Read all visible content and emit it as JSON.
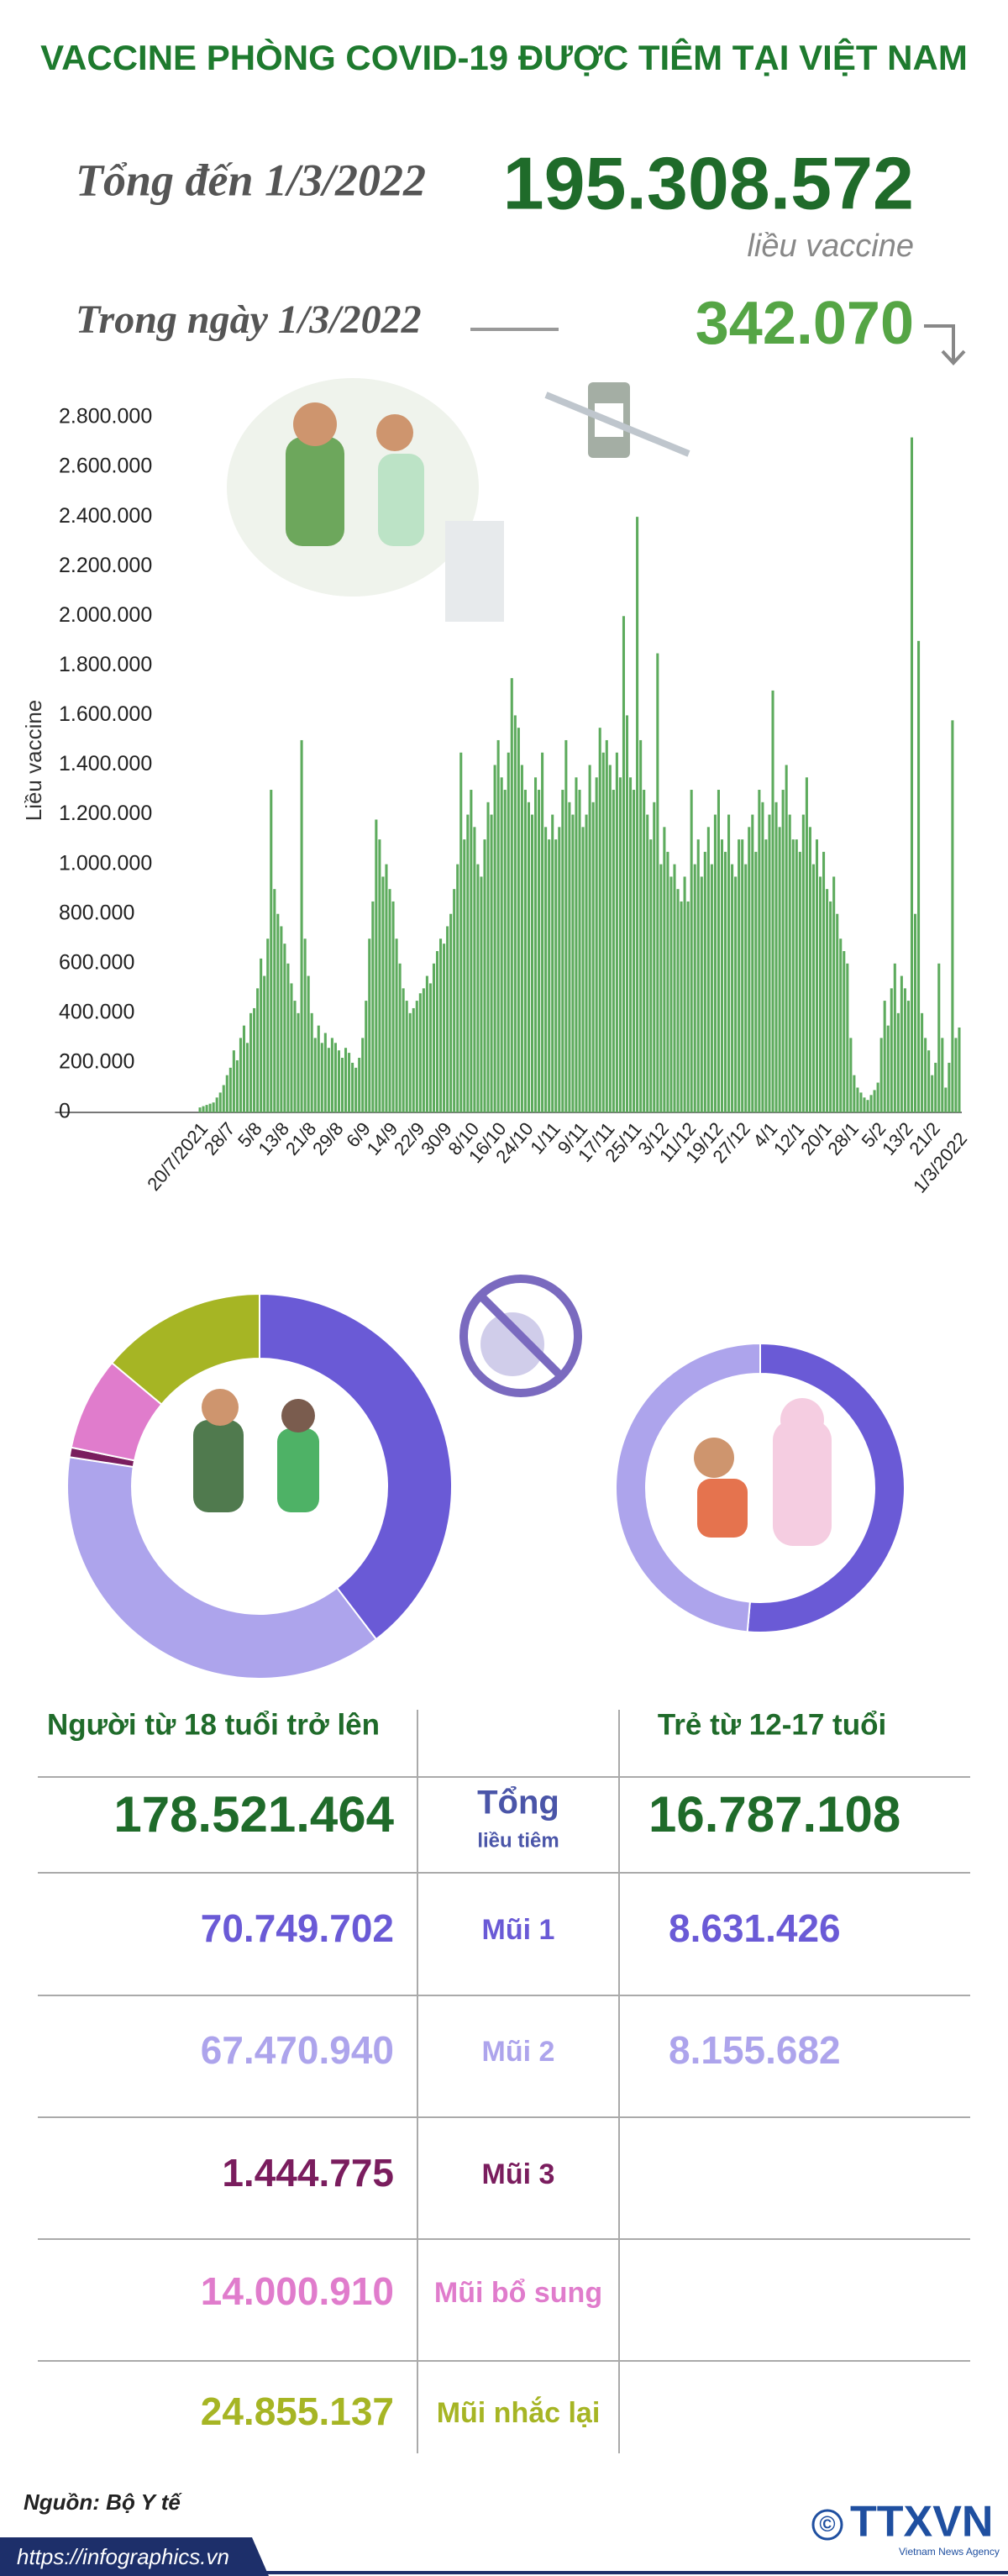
{
  "header": {
    "title": "VACCINE PHÒNG COVID-19 ĐƯỢC TIÊM TẠI VIỆT NAM",
    "total_label": "Tổng đến 1/3/2022",
    "total_value": "195.308.572",
    "total_unit": "liều vaccine",
    "daily_label": "Trong ngày 1/3/2022",
    "daily_value": "342.070"
  },
  "chart_data": {
    "type": "bar",
    "ylabel": "Liều vaccine",
    "color": "#5dab5d",
    "ylim": [
      0,
      2800000
    ],
    "yticks": [
      0,
      {
        "value": 200000,
        "label": "200.000"
      },
      {
        "value": 400000,
        "label": "400.000"
      },
      {
        "value": 600000,
        "label": "600.000"
      },
      {
        "value": 800000,
        "label": "800.000"
      },
      {
        "value": 1000000,
        "label": "1.000.000"
      },
      {
        "value": 1200000,
        "label": "1.200.000"
      },
      {
        "value": 1400000,
        "label": "1.400.000"
      },
      {
        "value": 1600000,
        "label": "1.600.000"
      },
      {
        "value": 1800000,
        "label": "1.800.000"
      },
      {
        "value": 2000000,
        "label": "2.000.000"
      },
      {
        "value": 2200000,
        "label": "2.200.000"
      },
      {
        "value": 2400000,
        "label": "2.400.000"
      },
      {
        "value": 2600000,
        "label": "2.600.000"
      },
      {
        "value": 2800000,
        "label": "2.800.000"
      }
    ],
    "categories": [
      "20/7/2021",
      null,
      null,
      null,
      null,
      null,
      null,
      null,
      "28/7",
      null,
      null,
      null,
      null,
      null,
      null,
      null,
      "5/8",
      null,
      null,
      null,
      null,
      null,
      null,
      null,
      "13/8",
      null,
      null,
      null,
      null,
      null,
      null,
      null,
      "21/8",
      null,
      null,
      null,
      null,
      null,
      null,
      null,
      "29/8",
      null,
      null,
      null,
      null,
      null,
      null,
      null,
      "6/9",
      null,
      null,
      null,
      null,
      null,
      null,
      null,
      "14/9",
      null,
      null,
      null,
      null,
      null,
      null,
      null,
      "22/9",
      null,
      null,
      null,
      null,
      null,
      null,
      null,
      "30/9",
      null,
      null,
      null,
      null,
      null,
      null,
      null,
      "8/10",
      null,
      null,
      null,
      null,
      null,
      null,
      null,
      "16/10",
      null,
      null,
      null,
      null,
      null,
      null,
      null,
      "24/10",
      null,
      null,
      null,
      null,
      null,
      null,
      null,
      "1/11",
      null,
      null,
      null,
      null,
      null,
      null,
      null,
      "9/11",
      null,
      null,
      null,
      null,
      null,
      null,
      null,
      "17/11",
      null,
      null,
      null,
      null,
      null,
      null,
      null,
      "25/11",
      null,
      null,
      null,
      null,
      null,
      null,
      null,
      "3/12",
      null,
      null,
      null,
      null,
      null,
      null,
      null,
      "11/12",
      null,
      null,
      null,
      null,
      null,
      null,
      null,
      "19/12",
      null,
      null,
      null,
      null,
      null,
      null,
      null,
      "27/12",
      null,
      null,
      null,
      null,
      null,
      null,
      null,
      "4/1",
      null,
      null,
      null,
      null,
      null,
      null,
      null,
      "12/1",
      null,
      null,
      null,
      null,
      null,
      null,
      null,
      "20/1",
      null,
      null,
      null,
      null,
      null,
      null,
      null,
      "28/1",
      null,
      null,
      null,
      null,
      null,
      null,
      null,
      "5/2",
      null,
      null,
      null,
      null,
      null,
      null,
      null,
      "13/2",
      null,
      null,
      null,
      null,
      null,
      null,
      null,
      "21/2",
      null,
      null,
      null,
      null,
      null,
      null,
      null,
      "1/3/2022"
    ],
    "values": [
      20000,
      25000,
      30000,
      35000,
      40000,
      60000,
      80000,
      110000,
      150000,
      180000,
      250000,
      210000,
      300000,
      350000,
      280000,
      400000,
      420000,
      500000,
      620000,
      550000,
      700000,
      1300000,
      900000,
      800000,
      750000,
      680000,
      600000,
      520000,
      450000,
      400000,
      1500000,
      700000,
      550000,
      400000,
      300000,
      350000,
      280000,
      320000,
      260000,
      300000,
      280000,
      250000,
      220000,
      260000,
      240000,
      200000,
      180000,
      220000,
      300000,
      450000,
      700000,
      850000,
      1180000,
      1100000,
      950000,
      1000000,
      900000,
      850000,
      700000,
      600000,
      500000,
      450000,
      400000,
      420000,
      450000,
      480000,
      500000,
      550000,
      520000,
      600000,
      650000,
      700000,
      680000,
      750000,
      800000,
      900000,
      1000000,
      1450000,
      1100000,
      1200000,
      1300000,
      1150000,
      1000000,
      950000,
      1100000,
      1250000,
      1200000,
      1400000,
      1500000,
      1350000,
      1300000,
      1450000,
      1750000,
      1600000,
      1550000,
      1400000,
      1300000,
      1250000,
      1200000,
      1350000,
      1300000,
      1450000,
      1150000,
      1100000,
      1200000,
      1100000,
      1150000,
      1300000,
      1500000,
      1250000,
      1200000,
      1350000,
      1300000,
      1150000,
      1200000,
      1400000,
      1250000,
      1350000,
      1550000,
      1450000,
      1500000,
      1400000,
      1300000,
      1450000,
      1350000,
      2000000,
      1600000,
      1350000,
      1300000,
      2400000,
      1500000,
      1300000,
      1200000,
      1100000,
      1250000,
      1850000,
      1000000,
      1150000,
      1050000,
      950000,
      1000000,
      900000,
      850000,
      950000,
      850000,
      1300000,
      1000000,
      1100000,
      950000,
      1050000,
      1150000,
      1000000,
      1200000,
      1300000,
      1100000,
      1050000,
      1200000,
      1000000,
      950000,
      1100000,
      1100000,
      1000000,
      1150000,
      1200000,
      1050000,
      1300000,
      1250000,
      1100000,
      1200000,
      1700000,
      1250000,
      1150000,
      1300000,
      1400000,
      1200000,
      1100000,
      1100000,
      1050000,
      1200000,
      1350000,
      1150000,
      1000000,
      1100000,
      950000,
      1050000,
      900000,
      850000,
      950000,
      800000,
      700000,
      650000,
      600000,
      300000,
      150000,
      100000,
      80000,
      60000,
      50000,
      70000,
      90000,
      120000,
      300000,
      450000,
      350000,
      500000,
      600000,
      400000,
      550000,
      500000,
      450000,
      2720000,
      800000,
      1900000,
      400000,
      300000,
      250000,
      150000,
      200000,
      600000,
      300000,
      100000,
      200000,
      1580000,
      300000,
      342070
    ]
  },
  "table": {
    "headers": [
      "Người từ 18 tuổi trở lên",
      "Trẻ từ 12-17 tuổi"
    ],
    "rows": [
      {
        "label": "Tổng",
        "sublabel": "liều tiêm",
        "color": "#1f6b2a",
        "adult": "178.521.464",
        "child": "16.787.108"
      },
      {
        "label": "Mũi 1",
        "color": "#6a5ad6",
        "adult": {
          "value": 70749702,
          "value_label": "70.749.702"
        },
        "child": {
          "value": 8631426,
          "value_label": "8.631.426"
        }
      },
      {
        "label": "Mũi 2",
        "color": "#ad a4ec",
        "adult": {
          "value": 67470940,
          "value_label": "67.470.940"
        },
        "child": {
          "value": 8155682,
          "value_label": "8.155.682"
        }
      },
      {
        "label": "Mũi 3",
        "color": "#7a1d5e",
        "adult": {
          "value": 1444775,
          "value_label": "1.444.775"
        }
      },
      {
        "label": "Mũi bổ sung",
        "color": "#e07ccc",
        "adult": {
          "value": 14000910,
          "value_label": "14.000.910"
        }
      },
      {
        "label": "Mũi nhắc lại",
        "color": "#a6b524",
        "adult": {
          "value": 24855137,
          "value_label": "24.855.137"
        }
      }
    ]
  },
  "footer": {
    "source": "Nguồn: Bộ Y tế",
    "url": "https://infographics.vn",
    "logo_mark": "©",
    "logo": "TTXVN",
    "logo_sub": "Vietnam News Agency"
  }
}
